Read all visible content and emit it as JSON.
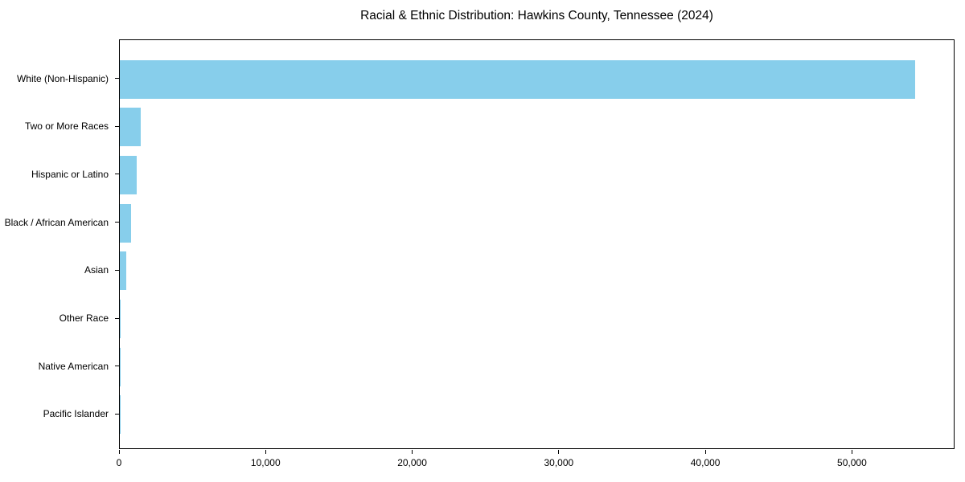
{
  "chart_data": {
    "type": "bar",
    "orientation": "horizontal",
    "title": "Racial & Ethnic Distribution: Hawkins County, Tennessee (2024)",
    "categories": [
      "White (Non-Hispanic)",
      "Two or More Races",
      "Hispanic or Latino",
      "Black / African American",
      "Asian",
      "Other Race",
      "Native American",
      "Pacific Islander"
    ],
    "values": [
      54230,
      1450,
      1170,
      790,
      430,
      80,
      40,
      10
    ],
    "bar_color": "#87CEEB",
    "xlabel": "",
    "ylabel": "",
    "xlim": [
      0,
      57000
    ],
    "x_ticks": [
      0,
      10000,
      20000,
      30000,
      40000,
      50000
    ],
    "x_tick_labels": [
      "0",
      "10,000",
      "20,000",
      "30,000",
      "40,000",
      "50,000"
    ],
    "grid": false,
    "legend": null,
    "background_color": "#FFFFFF",
    "spine_color": "#000000"
  }
}
